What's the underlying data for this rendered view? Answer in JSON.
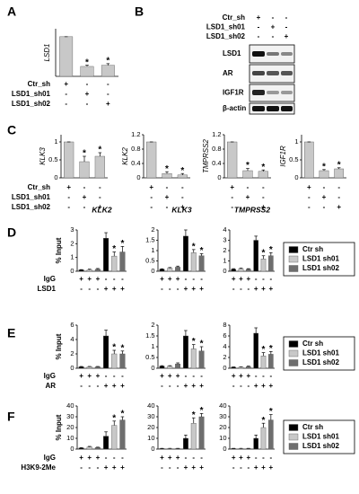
{
  "panel_letters": [
    "A",
    "B",
    "C",
    "D",
    "E",
    "F"
  ],
  "blot": {
    "conditions": [
      {
        "name": "Ctr_sh",
        "signs": [
          "+",
          "-",
          "-"
        ]
      },
      {
        "name": "LSD1_sh01",
        "signs": [
          "-",
          "+",
          "-"
        ]
      },
      {
        "name": "LSD1_sh02",
        "signs": [
          "-",
          "-",
          "+"
        ]
      }
    ],
    "proteins": [
      "LSD1",
      "AR",
      "IGF1R",
      "β-actin"
    ]
  },
  "legends": [
    {
      "entries": [
        {
          "name": "Ctr sh",
          "color": "#000000"
        },
        {
          "name": "LSD1 sh01",
          "color": "#c8c8c8"
        },
        {
          "name": "LSD1 sh02",
          "color": "#6e6e6e"
        }
      ]
    },
    {
      "entries": [
        {
          "name": "Ctr sh",
          "color": "#000000"
        },
        {
          "name": "LSD1 sh01",
          "color": "#c8c8c8"
        },
        {
          "name": "LSD1 sh02",
          "color": "#6e6e6e"
        }
      ]
    },
    {
      "entries": [
        {
          "name": "Ctr sh",
          "color": "#000000"
        },
        {
          "name": "LSD1 sh01",
          "color": "#c8c8c8"
        },
        {
          "name": "LSD1 sh02",
          "color": "#6e6e6e"
        }
      ]
    }
  ],
  "chart_data": [
    {
      "type": "bar",
      "ylabel": "LSD1",
      "values": [
        1.0,
        0.25,
        0.28
      ],
      "errors": [
        0,
        0.03,
        0.04
      ],
      "colors": [
        "#c8c8c8",
        "#c8c8c8",
        "#c8c8c8"
      ],
      "significance": [
        null,
        "*",
        "*"
      ],
      "ylim": [
        0,
        1.2
      ],
      "conditions": [
        {
          "name": "Ctr_sh",
          "signs": [
            "+",
            "-",
            "-"
          ]
        },
        {
          "name": "LSD1_sh01",
          "signs": [
            "-",
            "+",
            "-"
          ]
        },
        {
          "name": "LSD1_sh02",
          "signs": [
            "-",
            "-",
            "+"
          ]
        }
      ]
    },
    {
      "type": "bar",
      "ylabel": "KLK3",
      "values": [
        1.0,
        0.45,
        0.6
      ],
      "errors": [
        0,
        0.15,
        0.1
      ],
      "colors": [
        "#c8c8c8",
        "#c8c8c8",
        "#c8c8c8"
      ],
      "significance": [
        null,
        "*",
        "*"
      ],
      "ylim": [
        0,
        1.2
      ],
      "yticks": [
        0,
        0.5,
        1
      ],
      "conditions": [
        {
          "name": "Ctr_sh",
          "signs": [
            "+",
            "-",
            "-"
          ]
        },
        {
          "name": "LSD1_sh01",
          "signs": [
            "-",
            "+",
            "-"
          ]
        },
        {
          "name": "LSD1_sh02",
          "signs": [
            "-",
            "-",
            "+"
          ]
        }
      ]
    },
    {
      "type": "bar",
      "ylabel": "KLK2",
      "values": [
        1.0,
        0.12,
        0.08
      ],
      "errors": [
        0,
        0.05,
        0.04
      ],
      "colors": [
        "#c8c8c8",
        "#c8c8c8",
        "#c8c8c8"
      ],
      "significance": [
        null,
        "*",
        "*"
      ],
      "ylim": [
        0,
        1.2
      ],
      "yticks": [
        0,
        0.4,
        0.8,
        1.2
      ],
      "conditions": [
        {
          "signs": [
            "+",
            "-",
            "-"
          ]
        },
        {
          "signs": [
            "-",
            "+",
            "-"
          ]
        },
        {
          "signs": [
            "-",
            "-",
            "+"
          ]
        }
      ]
    },
    {
      "type": "bar",
      "ylabel": "TMPRSS2",
      "values": [
        1.0,
        0.2,
        0.18
      ],
      "errors": [
        0,
        0.06,
        0.04
      ],
      "colors": [
        "#c8c8c8",
        "#c8c8c8",
        "#c8c8c8"
      ],
      "significance": [
        null,
        "*",
        "*"
      ],
      "ylim": [
        0,
        1.2
      ],
      "yticks": [
        0,
        0.4,
        0.8,
        1.2
      ],
      "conditions": [
        {
          "signs": [
            "+",
            "-",
            "-"
          ]
        },
        {
          "signs": [
            "-",
            "+",
            "-"
          ]
        },
        {
          "signs": [
            "-",
            "-",
            "+"
          ]
        }
      ]
    },
    {
      "type": "bar",
      "ylabel": "IGF1R",
      "values": [
        1.0,
        0.2,
        0.25
      ],
      "errors": [
        0,
        0.03,
        0.03
      ],
      "colors": [
        "#c8c8c8",
        "#c8c8c8",
        "#c8c8c8"
      ],
      "significance": [
        null,
        "*",
        "*"
      ],
      "ylim": [
        0,
        1.2
      ],
      "yticks": [
        0,
        0.5,
        1
      ],
      "conditions": [
        {
          "signs": [
            "+",
            "-",
            "-"
          ]
        },
        {
          "signs": [
            "-",
            "+",
            "-"
          ]
        },
        {
          "signs": [
            "-",
            "-",
            "+"
          ]
        }
      ]
    },
    {
      "type": "bar",
      "title": "KLK2",
      "ylabel": "% Input",
      "values": [
        0.1,
        0.1,
        0.15,
        2.4,
        1.1,
        1.4
      ],
      "errors": [
        0.02,
        0.05,
        0.05,
        0.4,
        0.3,
        0.4
      ],
      "colors": [
        "#000000",
        "#c8c8c8",
        "#6e6e6e",
        "#000000",
        "#c8c8c8",
        "#6e6e6e"
      ],
      "significance": [
        null,
        null,
        null,
        null,
        "*",
        "*"
      ],
      "ylim": [
        0,
        3
      ],
      "yticks": [
        0,
        1,
        2,
        3
      ],
      "conditions": [
        {
          "name": "IgG",
          "signs": [
            "+",
            "+",
            "+",
            "-",
            "-",
            "-"
          ]
        },
        {
          "name": "LSD1",
          "signs": [
            "-",
            "-",
            "-",
            "+",
            "+",
            "+"
          ]
        }
      ]
    },
    {
      "type": "bar",
      "title": "KLK3",
      "values": [
        0.1,
        0.15,
        0.2,
        1.7,
        0.9,
        0.75
      ],
      "errors": [
        0.02,
        0.03,
        0.05,
        0.3,
        0.15,
        0.1
      ],
      "colors": [
        "#000000",
        "#c8c8c8",
        "#6e6e6e",
        "#000000",
        "#c8c8c8",
        "#6e6e6e"
      ],
      "significance": [
        null,
        null,
        null,
        null,
        "*",
        "*"
      ],
      "ylim": [
        0,
        2
      ],
      "yticks": [
        0,
        0.5,
        1,
        1.5,
        2
      ],
      "conditions": [
        {
          "signs": [
            "+",
            "+",
            "+",
            "-",
            "-",
            "-"
          ]
        },
        {
          "signs": [
            "-",
            "-",
            "-",
            "+",
            "+",
            "+"
          ]
        }
      ]
    },
    {
      "type": "bar",
      "title": "TMPRSS2",
      "values": [
        0.2,
        0.25,
        0.2,
        3.0,
        1.2,
        1.5
      ],
      "errors": [
        0.05,
        0.05,
        0.05,
        0.4,
        0.3,
        0.3
      ],
      "colors": [
        "#000000",
        "#c8c8c8",
        "#6e6e6e",
        "#000000",
        "#c8c8c8",
        "#6e6e6e"
      ],
      "significance": [
        null,
        null,
        null,
        null,
        "*",
        "*"
      ],
      "ylim": [
        0,
        4
      ],
      "yticks": [
        0,
        1,
        2,
        3,
        4
      ],
      "conditions": [
        {
          "signs": [
            "+",
            "+",
            "+",
            "-",
            "-",
            "-"
          ]
        },
        {
          "signs": [
            "-",
            "-",
            "-",
            "+",
            "+",
            "+"
          ]
        }
      ]
    },
    {
      "type": "bar",
      "ylabel": "% Input",
      "values": [
        0.2,
        0.2,
        0.2,
        4.5,
        2.0,
        2.0
      ],
      "errors": [
        0.05,
        0.05,
        0.05,
        0.8,
        0.5,
        0.4
      ],
      "colors": [
        "#000000",
        "#c8c8c8",
        "#6e6e6e",
        "#000000",
        "#c8c8c8",
        "#6e6e6e"
      ],
      "significance": [
        null,
        null,
        null,
        null,
        "*",
        "*"
      ],
      "ylim": [
        0,
        6
      ],
      "yticks": [
        0,
        2,
        4,
        6
      ],
      "conditions": [
        {
          "name": "IgG",
          "signs": [
            "+",
            "+",
            "+",
            "-",
            "-",
            "-"
          ]
        },
        {
          "name": "AR",
          "signs": [
            "-",
            "-",
            "-",
            "+",
            "+",
            "+"
          ]
        }
      ]
    },
    {
      "type": "bar",
      "values": [
        0.1,
        0.1,
        0.2,
        1.5,
        0.9,
        0.8
      ],
      "errors": [
        0.02,
        0.02,
        0.05,
        0.25,
        0.2,
        0.2
      ],
      "colors": [
        "#000000",
        "#c8c8c8",
        "#6e6e6e",
        "#000000",
        "#c8c8c8",
        "#6e6e6e"
      ],
      "significance": [
        null,
        null,
        null,
        null,
        "*",
        "*"
      ],
      "ylim": [
        0,
        2
      ],
      "yticks": [
        0,
        0.5,
        1,
        1.5,
        2
      ],
      "conditions": [
        {
          "signs": [
            "+",
            "+",
            "+",
            "-",
            "-",
            "-"
          ]
        },
        {
          "signs": [
            "-",
            "-",
            "-",
            "+",
            "+",
            "+"
          ]
        }
      ]
    },
    {
      "type": "bar",
      "values": [
        0.2,
        0.2,
        0.3,
        6.5,
        2.3,
        2.6
      ],
      "errors": [
        0.05,
        0.05,
        0.1,
        1,
        0.6,
        0.5
      ],
      "colors": [
        "#000000",
        "#c8c8c8",
        "#6e6e6e",
        "#000000",
        "#c8c8c8",
        "#6e6e6e"
      ],
      "significance": [
        null,
        null,
        null,
        null,
        "*",
        "*"
      ],
      "ylim": [
        0,
        8
      ],
      "yticks": [
        0,
        2,
        4,
        6,
        8
      ],
      "conditions": [
        {
          "signs": [
            "+",
            "+",
            "+",
            "-",
            "-",
            "-"
          ]
        },
        {
          "signs": [
            "-",
            "-",
            "-",
            "+",
            "+",
            "+"
          ]
        }
      ]
    },
    {
      "type": "bar",
      "ylabel": "% Input",
      "values": [
        1,
        2,
        1.5,
        12,
        22,
        27
      ],
      "errors": [
        0.3,
        0.5,
        0.3,
        4,
        4,
        3
      ],
      "colors": [
        "#000000",
        "#c8c8c8",
        "#6e6e6e",
        "#000000",
        "#c8c8c8",
        "#6e6e6e"
      ],
      "significance": [
        null,
        null,
        null,
        null,
        "*",
        "*"
      ],
      "ylim": [
        0,
        40
      ],
      "yticks": [
        0,
        10,
        20,
        30,
        40
      ],
      "conditions": [
        {
          "name": "IgG",
          "signs": [
            "+",
            "+",
            "+",
            "-",
            "-",
            "-"
          ]
        },
        {
          "name": "H3K9-2Me",
          "signs": [
            "-",
            "-",
            "-",
            "+",
            "+",
            "+"
          ]
        }
      ]
    },
    {
      "type": "bar",
      "values": [
        0.5,
        0.5,
        0.5,
        10,
        24,
        30
      ],
      "errors": [
        0.2,
        0.2,
        0.2,
        3,
        5,
        3
      ],
      "colors": [
        "#000000",
        "#c8c8c8",
        "#6e6e6e",
        "#000000",
        "#c8c8c8",
        "#6e6e6e"
      ],
      "significance": [
        null,
        null,
        null,
        null,
        "*",
        "*"
      ],
      "ylim": [
        0,
        40
      ],
      "yticks": [
        0,
        10,
        20,
        30,
        40
      ],
      "conditions": [
        {
          "signs": [
            "+",
            "+",
            "+",
            "-",
            "-",
            "-"
          ]
        },
        {
          "signs": [
            "-",
            "-",
            "-",
            "+",
            "+",
            "+"
          ]
        }
      ]
    },
    {
      "type": "bar",
      "values": [
        0.5,
        0.5,
        0.5,
        10,
        20,
        27
      ],
      "errors": [
        0.2,
        0.2,
        0.2,
        3,
        4,
        5
      ],
      "colors": [
        "#000000",
        "#c8c8c8",
        "#6e6e6e",
        "#000000",
        "#c8c8c8",
        "#6e6e6e"
      ],
      "significance": [
        null,
        null,
        null,
        null,
        "*",
        "*"
      ],
      "ylim": [
        0,
        40
      ],
      "yticks": [
        0,
        10,
        20,
        30,
        40
      ],
      "conditions": [
        {
          "signs": [
            "+",
            "+",
            "+",
            "-",
            "-",
            "-"
          ]
        },
        {
          "signs": [
            "-",
            "-",
            "-",
            "+",
            "+",
            "+"
          ]
        }
      ]
    }
  ]
}
